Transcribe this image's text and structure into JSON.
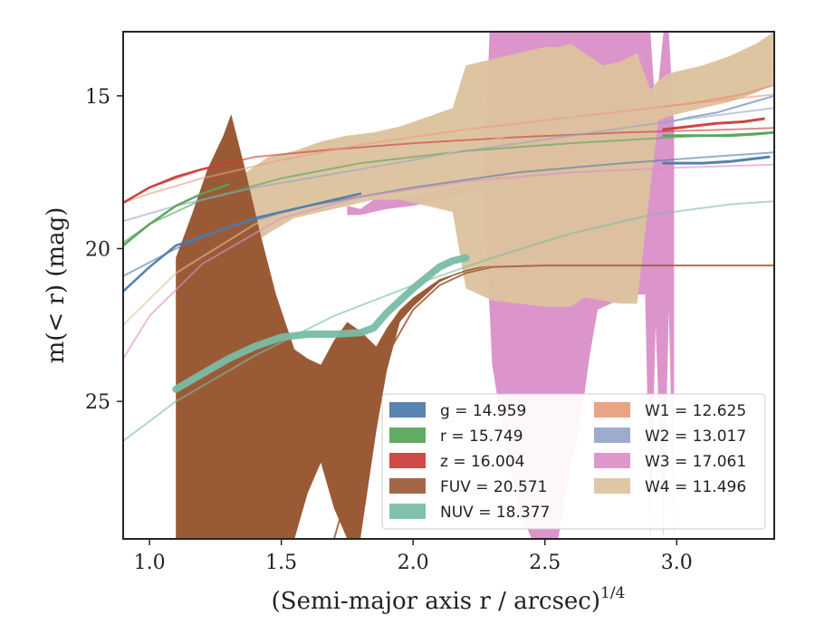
{
  "chart_data": {
    "type": "line",
    "xlabel": "(Semi-major axis r / arcsec)",
    "xlabel_superscript": "1/4",
    "ylabel": "m(< r) (mag)",
    "xlim": [
      0.9,
      3.37
    ],
    "ylim": [
      29.5,
      12.9
    ],
    "y_inverted": true,
    "xticks": [
      1.0,
      1.5,
      2.0,
      2.5,
      3.0
    ],
    "yticks": [
      15,
      20,
      25
    ],
    "grid": false,
    "legend": {
      "placement": "lower-right",
      "columns": [
        [
          "g = 14.959",
          "r = 15.749",
          "z = 16.004",
          "FUV = 20.571",
          "NUV = 18.377"
        ],
        [
          "W1 = 12.625",
          "W2 = 13.017",
          "W3 = 17.061",
          "W4 = 11.496"
        ]
      ],
      "colors": [
        [
          "#4c7aab",
          "#55a455",
          "#cc3b3b",
          "#9b5a36",
          "#79bca5"
        ],
        [
          "#e99b7c",
          "#95a4c9",
          "#da8fc7",
          "#dcc29d"
        ]
      ]
    },
    "series": [
      {
        "name": "g",
        "color": "#4c7aab",
        "fit": {
          "x": [
            0.9,
            1.1,
            1.3,
            1.6,
            2.0,
            2.4,
            2.8,
            3.2,
            3.37
          ],
          "y": [
            20.9,
            20.0,
            19.3,
            18.6,
            18.0,
            17.5,
            17.2,
            16.95,
            16.85
          ]
        },
        "obs": {
          "x": [
            0.9,
            1.0,
            1.1,
            1.2,
            1.3,
            1.4,
            1.5,
            1.6,
            1.7,
            1.8
          ],
          "y": [
            21.4,
            20.6,
            19.9,
            19.6,
            19.3,
            19.0,
            18.8,
            18.6,
            18.4,
            18.2
          ],
          "width": 2.5
        },
        "obs2": {
          "x": [
            2.95,
            3.1,
            3.2,
            3.3,
            3.35
          ],
          "y": [
            17.2,
            17.2,
            17.15,
            17.05,
            17.0
          ],
          "width": 3
        }
      },
      {
        "name": "r",
        "color": "#55a455",
        "fit": {
          "x": [
            0.9,
            1.0,
            1.2,
            1.5,
            1.8,
            2.2,
            2.6,
            3.0,
            3.37
          ],
          "y": [
            19.8,
            19.2,
            18.4,
            17.7,
            17.2,
            16.8,
            16.55,
            16.35,
            16.2
          ]
        },
        "obs": {
          "x": [
            0.9,
            1.0,
            1.1,
            1.2,
            1.3
          ],
          "y": [
            19.9,
            19.2,
            18.6,
            18.2,
            17.9
          ],
          "width": 2.5
        },
        "obs2": {
          "x": [
            2.95,
            3.1,
            3.2,
            3.3,
            3.37
          ],
          "y": [
            16.3,
            16.3,
            16.3,
            16.25,
            16.2
          ],
          "width": 3
        }
      },
      {
        "name": "z",
        "color": "#cc3b3b",
        "fit": {
          "x": [
            0.9,
            1.0,
            1.2,
            1.4,
            1.7,
            2.0,
            2.4,
            2.8,
            3.2,
            3.37
          ],
          "y": [
            18.5,
            18.0,
            17.4,
            17.0,
            16.75,
            16.55,
            16.35,
            16.2,
            16.1,
            16.05
          ]
        },
        "obs": {
          "x": [
            0.9,
            1.0,
            1.1,
            1.2,
            1.3
          ],
          "y": [
            18.5,
            18.0,
            17.65,
            17.4,
            17.2
          ],
          "width": 2.5
        },
        "obs2": {
          "x": [
            2.95,
            3.05,
            3.15,
            3.25,
            3.33
          ],
          "y": [
            16.1,
            16.0,
            15.9,
            15.85,
            15.75
          ],
          "width": 3
        }
      },
      {
        "name": "FUV",
        "color": "#9b5a36",
        "fit": {
          "x": [
            1.7,
            1.8,
            1.9,
            2.0,
            2.1,
            2.2,
            2.3,
            2.5,
            2.8,
            3.1,
            3.37
          ],
          "y": [
            29.5,
            26.5,
            23.5,
            22.0,
            21.2,
            20.8,
            20.6,
            20.55,
            20.55,
            20.55,
            20.55
          ]
        },
        "band_x": [
          1.1,
          1.16,
          1.22,
          1.28,
          1.31,
          1.36,
          1.42,
          1.48,
          1.55,
          1.6,
          1.65,
          1.7,
          1.75,
          1.8,
          1.86,
          1.9,
          1.95,
          2.0,
          2.05,
          2.1,
          2.15,
          2.2,
          2.25,
          2.3
        ],
        "band_lo": [
          20.3,
          18.9,
          17.4,
          16.3,
          15.6,
          17.3,
          19.5,
          21.5,
          23.3,
          23.6,
          23.8,
          23.0,
          22.4,
          22.7,
          23.2,
          22.6,
          22.0,
          21.6,
          21.3,
          21.0,
          20.85,
          20.7,
          20.6,
          20.55
        ],
        "band_hi": [
          29.5,
          29.5,
          29.5,
          29.5,
          29.5,
          29.5,
          29.5,
          29.5,
          29.5,
          28.0,
          27.0,
          28.5,
          29.5,
          29.5,
          26.0,
          24.0,
          22.4,
          21.9,
          21.5,
          21.1,
          20.9,
          20.75,
          20.65,
          20.55
        ]
      },
      {
        "name": "NUV",
        "color": "#79bca5",
        "fit": {
          "x": [
            0.9,
            1.1,
            1.4,
            1.7,
            2.0,
            2.3,
            2.6,
            2.9,
            3.2,
            3.37
          ],
          "y": [
            26.3,
            25.0,
            23.5,
            22.2,
            21.2,
            20.3,
            19.5,
            18.9,
            18.55,
            18.45
          ]
        },
        "obs": {
          "x": [
            1.1,
            1.2,
            1.3,
            1.4,
            1.5,
            1.6,
            1.7,
            1.8,
            1.85,
            1.9,
            2.0,
            2.1,
            2.15,
            2.2
          ],
          "y": [
            24.6,
            24.1,
            23.6,
            23.2,
            22.9,
            22.8,
            22.8,
            22.75,
            22.6,
            22.1,
            21.3,
            20.6,
            20.4,
            20.3
          ],
          "width": 8
        }
      },
      {
        "name": "W1",
        "color": "#e99b7c",
        "fit": {
          "x": [
            0.9,
            1.0,
            1.2,
            1.5,
            1.8,
            2.2,
            2.6,
            3.0,
            3.37
          ],
          "y": [
            18.5,
            18.2,
            17.7,
            17.1,
            16.6,
            16.1,
            15.7,
            15.3,
            14.95
          ]
        },
        "obs": {
          "x": [
            2.95,
            3.05,
            3.15,
            3.25,
            3.37
          ],
          "y": [
            15.35,
            15.25,
            15.1,
            14.95,
            14.65
          ],
          "width": 2
        }
      },
      {
        "name": "W2",
        "color": "#95a4c9",
        "fit": {
          "x": [
            0.9,
            1.1,
            1.4,
            1.8,
            2.2,
            2.6,
            3.0,
            3.37
          ],
          "y": [
            19.1,
            18.6,
            18.0,
            17.4,
            16.8,
            16.3,
            15.8,
            15.4
          ]
        },
        "obs": {
          "x": [
            2.95,
            3.05,
            3.15,
            3.25,
            3.37
          ],
          "y": [
            15.9,
            15.7,
            15.55,
            15.3,
            15.0
          ],
          "width": 2
        }
      },
      {
        "name": "W3",
        "color": "#da8fc7",
        "fit": {
          "x": [
            0.9,
            1.0,
            1.2,
            1.5,
            1.8,
            2.2,
            2.6,
            3.0,
            3.37
          ],
          "y": [
            23.6,
            22.2,
            20.5,
            19.0,
            18.3,
            17.8,
            17.5,
            17.35,
            17.25
          ]
        },
        "band_x": [
          1.75,
          1.8,
          1.85,
          1.9,
          2.0,
          2.05,
          2.1,
          2.15,
          2.2,
          2.27,
          2.29,
          2.3,
          2.35,
          2.4,
          2.45,
          2.5,
          2.52,
          2.55,
          2.6,
          2.63,
          2.67,
          2.7,
          2.75,
          2.8,
          2.85,
          2.88,
          2.9,
          2.92,
          2.95,
          2.97,
          2.99
        ],
        "band_lo": [
          18.6,
          18.7,
          18.4,
          18.4,
          18.3,
          18.2,
          18.1,
          18.0,
          17.9,
          17.8,
          12.9,
          12.9,
          12.9,
          12.9,
          12.9,
          12.9,
          12.9,
          12.9,
          12.9,
          12.9,
          12.9,
          12.9,
          12.9,
          12.9,
          12.9,
          12.9,
          12.9,
          15.5,
          12.9,
          12.9,
          16.0
        ],
        "band_hi": [
          18.9,
          18.9,
          18.8,
          18.7,
          18.6,
          18.5,
          18.4,
          18.3,
          18.2,
          18.1,
          22.0,
          23.8,
          26.5,
          28.5,
          29.5,
          29.5,
          29.5,
          29.5,
          27.0,
          26.0,
          23.5,
          22.0,
          21.8,
          21.6,
          21.5,
          21.5,
          29.5,
          22.5,
          29.5,
          22.0,
          29.5
        ]
      },
      {
        "name": "W4",
        "color": "#dcc29d",
        "fit": {
          "x": [
            0.9,
            1.1,
            1.4,
            1.8,
            2.2,
            2.6,
            3.0,
            3.37
          ],
          "y": [
            22.5,
            20.8,
            19.2,
            17.8,
            16.7,
            15.7,
            14.8,
            14.0
          ]
        },
        "band_x": [
          1.29,
          1.35,
          1.45,
          1.55,
          1.65,
          1.75,
          1.85,
          1.95,
          2.05,
          2.15,
          2.2,
          2.3,
          2.4,
          2.5,
          2.55,
          2.6,
          2.65,
          2.72,
          2.78,
          2.85,
          2.9,
          2.93,
          2.96,
          3.0,
          3.1,
          3.2,
          3.3,
          3.37
        ],
        "band_lo": [
          18.3,
          17.6,
          17.0,
          16.8,
          16.5,
          16.3,
          16.2,
          16.0,
          15.7,
          15.4,
          14.0,
          13.8,
          13.6,
          13.4,
          13.4,
          13.3,
          13.6,
          14.0,
          13.9,
          13.6,
          14.8,
          14.5,
          14.3,
          14.2,
          14.0,
          13.7,
          13.3,
          12.9
        ],
        "band_hi": [
          20.6,
          20.1,
          19.5,
          19.0,
          18.8,
          18.6,
          18.4,
          18.4,
          18.6,
          18.8,
          21.3,
          21.7,
          21.8,
          21.9,
          21.9,
          21.9,
          21.6,
          21.7,
          21.8,
          21.8,
          18.0,
          15.8,
          15.7,
          15.6,
          15.4,
          15.2,
          14.9,
          14.6
        ]
      }
    ]
  }
}
